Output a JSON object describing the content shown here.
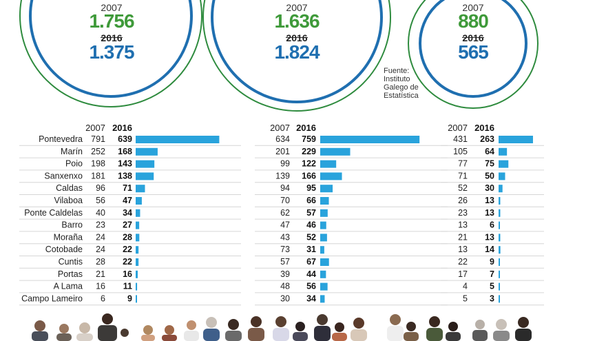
{
  "circles": [
    {
      "year_a": "2007",
      "value_a": "1.756",
      "year_b": "2016",
      "value_b": "1.375"
    },
    {
      "year_a": "2007",
      "value_a": "1.636",
      "year_b": "2016",
      "value_b": "1.824"
    },
    {
      "year_a": "2007",
      "value_a": "880",
      "year_b": "2016",
      "value_b": "565"
    }
  ],
  "source_note": "Fuente: Instituto Galego de Estatística",
  "colors": {
    "bar": "#29a3dc",
    "green": "#3f9a3a",
    "blue": "#1f6fb0"
  },
  "chart_data": {
    "type": "table",
    "row_labels": [
      "Pontevedra",
      "Marín",
      "Poio",
      "Sanxenxo",
      "Caldas",
      "Vilaboa",
      "Ponte Caldelas",
      "Barro",
      "Moraña",
      "Cotobade",
      "Cuntis",
      "Portas",
      "A Lama",
      "Campo Lameiro"
    ],
    "panels": [
      {
        "col_a": "2007",
        "col_b": "2016",
        "values_2007": [
          791,
          252,
          198,
          181,
          96,
          56,
          40,
          23,
          24,
          24,
          28,
          21,
          16,
          6
        ],
        "values_2016": [
          639,
          168,
          143,
          138,
          71,
          47,
          34,
          27,
          28,
          22,
          22,
          16,
          11,
          9
        ]
      },
      {
        "col_a": "2007",
        "col_b": "2016",
        "values_2007": [
          634,
          201,
          99,
          139,
          94,
          70,
          62,
          47,
          43,
          73,
          57,
          39,
          48,
          30
        ],
        "values_2016": [
          759,
          229,
          122,
          166,
          95,
          66,
          57,
          46,
          52,
          31,
          67,
          44,
          56,
          34
        ]
      },
      {
        "col_a": "2007",
        "col_b": "2016",
        "values_2007": [
          431,
          105,
          77,
          71,
          52,
          26,
          23,
          13,
          21,
          13,
          22,
          17,
          4,
          5
        ],
        "values_2016": [
          263,
          64,
          75,
          50,
          30,
          13,
          13,
          6,
          13,
          14,
          9,
          7,
          5,
          3
        ]
      }
    ]
  }
}
